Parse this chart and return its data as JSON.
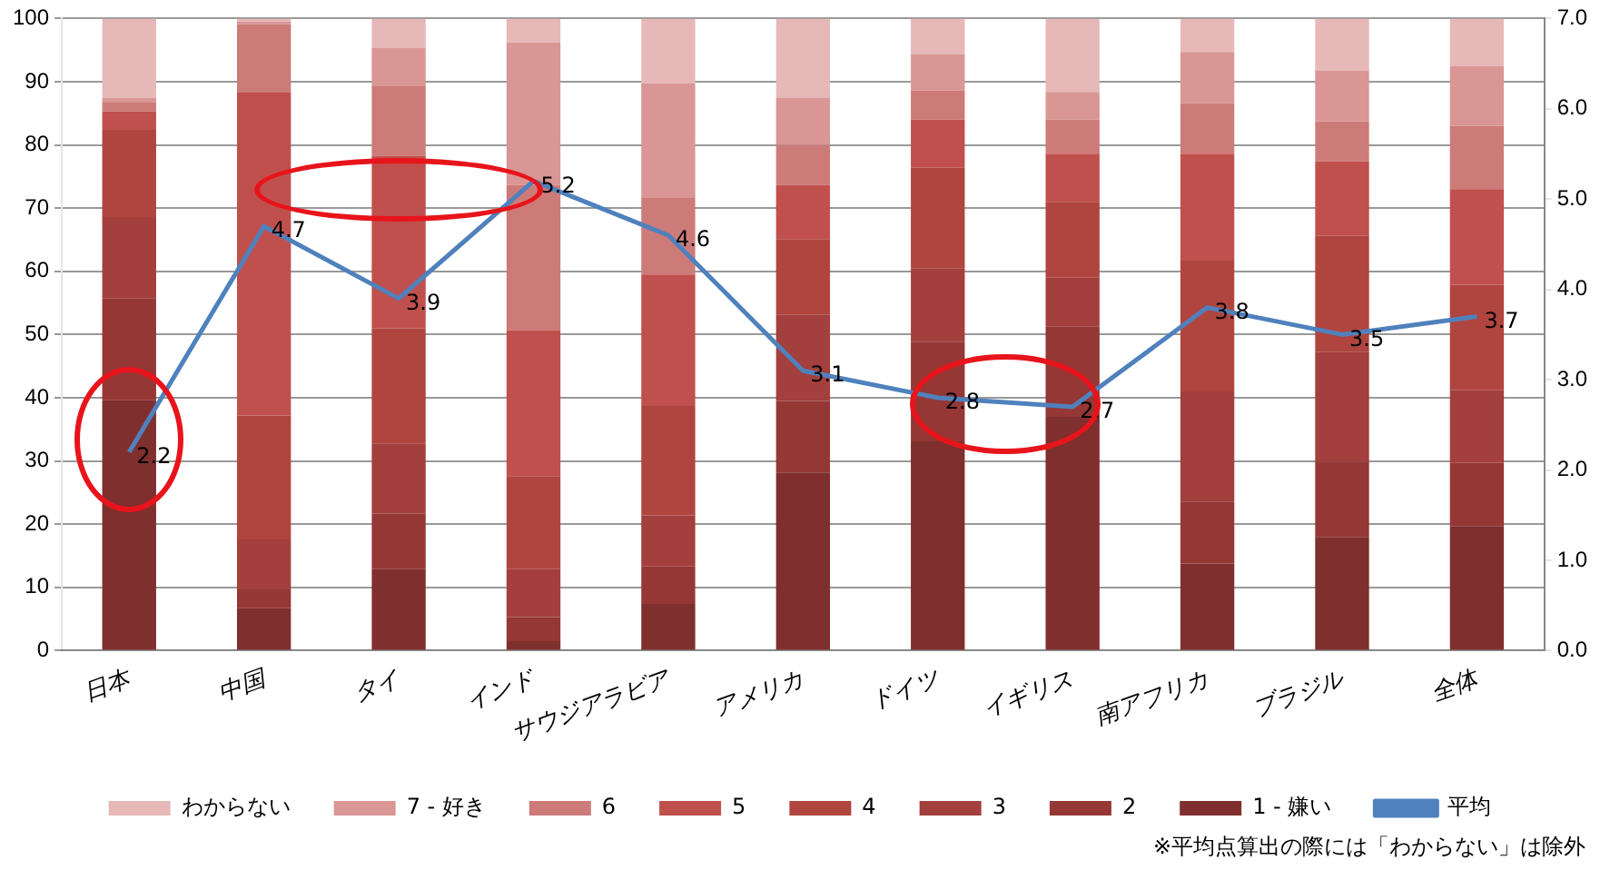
{
  "chart_data": {
    "type": "bar",
    "stacked": true,
    "categories": [
      "日本",
      "中国",
      "タイ",
      "インド",
      "サウジアラビア",
      "アメリカ",
      "ドイツ",
      "イギリス",
      "南アフリカ",
      "ブラジル",
      "全体"
    ],
    "series": [
      {
        "name": "1 - 嫌い",
        "color": "#7f2f2d",
        "values": [
          39.6,
          6.7,
          12.9,
          1.5,
          7.4,
          28.2,
          33.1,
          37.0,
          13.8,
          18.0,
          19.7
        ]
      },
      {
        "name": "2",
        "color": "#953735",
        "values": [
          16.1,
          3.0,
          8.8,
          3.8,
          5.9,
          11.3,
          15.7,
          14.3,
          9.8,
          11.9,
          10.0
        ]
      },
      {
        "name": "3",
        "color": "#a33f3c",
        "values": [
          12.9,
          7.9,
          11.1,
          7.6,
          8.1,
          13.7,
          11.7,
          7.7,
          17.4,
          17.4,
          11.5
        ]
      },
      {
        "name": "4",
        "color": "#b0453f",
        "values": [
          13.8,
          19.6,
          18.2,
          14.7,
          17.3,
          11.9,
          15.9,
          12.0,
          20.7,
          18.3,
          16.7
        ]
      },
      {
        "name": "5",
        "color": "#c0504d",
        "values": [
          2.9,
          51.2,
          27.3,
          23.1,
          20.8,
          8.6,
          7.6,
          7.6,
          16.9,
          11.8,
          15.1
        ]
      },
      {
        "name": "6",
        "color": "#cd7b79",
        "values": [
          1.5,
          10.7,
          11.1,
          23.0,
          12.1,
          6.3,
          4.6,
          5.4,
          8.0,
          6.3,
          10.0
        ]
      },
      {
        "name": "7 - 好き",
        "color": "#d99694",
        "values": [
          0.6,
          0.4,
          6.0,
          22.5,
          18.2,
          7.4,
          5.8,
          4.4,
          8.1,
          8.1,
          9.5
        ]
      },
      {
        "name": "わからない",
        "color": "#e6b9b8",
        "values": [
          12.6,
          0.5,
          4.6,
          3.8,
          10.2,
          12.6,
          5.6,
          11.6,
          5.3,
          8.2,
          7.5
        ]
      },
      {
        "name": "平均",
        "type": "line",
        "axis": "y2",
        "color": "#4f81bd",
        "data_labels": true,
        "values": [
          2.2,
          4.7,
          3.9,
          5.2,
          4.6,
          3.1,
          2.8,
          2.7,
          3.8,
          3.5,
          3.7
        ]
      }
    ],
    "ylim": [
      0,
      100
    ],
    "yticks": [
      0,
      10,
      20,
      30,
      40,
      50,
      60,
      70,
      80,
      90,
      100
    ],
    "y2lim": [
      0,
      7
    ],
    "y2ticks": [
      {
        "value": 0,
        "label": "0.0"
      },
      {
        "value": 1,
        "label": "1.0"
      },
      {
        "value": 2,
        "label": "2.0"
      },
      {
        "value": 3,
        "label": "3.0"
      },
      {
        "value": 4,
        "label": "4.0"
      },
      {
        "value": 5,
        "label": "5.0"
      },
      {
        "value": 6,
        "label": "6.0"
      },
      {
        "value": 7,
        "label": "7.0"
      }
    ],
    "grid": "y",
    "legend": "bottom",
    "marker": "none",
    "annotations": [
      "※平均点算出の際には「わからない」は除外"
    ]
  }
}
